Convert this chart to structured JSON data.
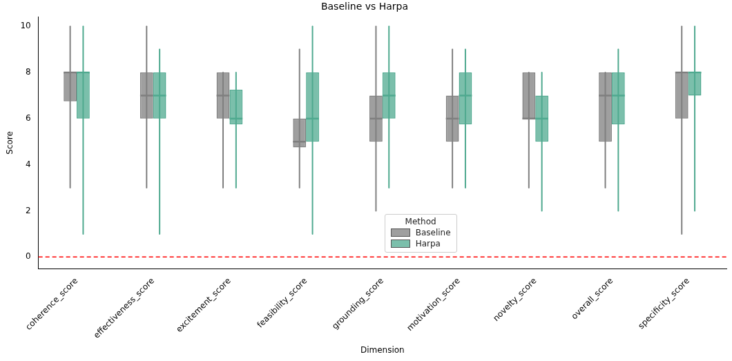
{
  "chart_data": {
    "type": "box",
    "title": "Baseline vs Harpa",
    "xlabel": "Dimension",
    "ylabel": "Score",
    "legend_title": "Method",
    "legend": "bottom",
    "grid": false,
    "categories": [
      "coherence_score",
      "effectiveness_score",
      "excitement_score",
      "feasibility_score",
      "grounding_score",
      "motivation_score",
      "novelty_score",
      "overall_score",
      "specificity_score"
    ],
    "ylim": [
      -0.5,
      10.4
    ],
    "yticks": [
      0,
      2,
      4,
      6,
      8,
      10
    ],
    "series": [
      {
        "name": "Baseline",
        "color": "#7f7f7f",
        "boxes": [
          {
            "low": 3,
            "q1": 6.75,
            "median": 8,
            "q3": 8,
            "high": 10
          },
          {
            "low": 3,
            "q1": 6,
            "median": 7,
            "q3": 8,
            "high": 10
          },
          {
            "low": 3,
            "q1": 6,
            "median": 7,
            "q3": 8,
            "high": 8
          },
          {
            "low": 3,
            "q1": 4.75,
            "median": 5,
            "q3": 6,
            "high": 9
          },
          {
            "low": 2,
            "q1": 5,
            "median": 6,
            "q3": 7,
            "high": 10
          },
          {
            "low": 3,
            "q1": 5,
            "median": 6,
            "q3": 7,
            "high": 9
          },
          {
            "low": 3,
            "q1": 6,
            "median": 6,
            "q3": 8,
            "high": 8
          },
          {
            "low": 3,
            "q1": 5,
            "median": 7,
            "q3": 8,
            "high": 8
          },
          {
            "low": 1,
            "q1": 6,
            "median": 8,
            "q3": 8,
            "high": 10
          }
        ]
      },
      {
        "name": "Harpa",
        "color": "#4fa98f",
        "boxes": [
          {
            "low": 1,
            "q1": 6,
            "median": 8,
            "q3": 8,
            "high": 10
          },
          {
            "low": 1,
            "q1": 6,
            "median": 7,
            "q3": 8,
            "high": 9
          },
          {
            "low": 3,
            "q1": 5.75,
            "median": 6,
            "q3": 7.25,
            "high": 8
          },
          {
            "low": 1,
            "q1": 5,
            "median": 6,
            "q3": 8,
            "high": 10
          },
          {
            "low": 3,
            "q1": 6,
            "median": 7,
            "q3": 8,
            "high": 10
          },
          {
            "low": 3,
            "q1": 5.75,
            "median": 7,
            "q3": 8,
            "high": 9
          },
          {
            "low": 2,
            "q1": 5,
            "median": 6,
            "q3": 7,
            "high": 8
          },
          {
            "low": 2,
            "q1": 5.75,
            "median": 7,
            "q3": 8,
            "high": 9
          },
          {
            "low": 2,
            "q1": 7,
            "median": 8,
            "q3": 8,
            "high": 10
          }
        ]
      }
    ],
    "ref_lines": [
      {
        "axis": "y",
        "value": 0,
        "color": "#ff0000",
        "line_style": "dashed"
      }
    ]
  }
}
